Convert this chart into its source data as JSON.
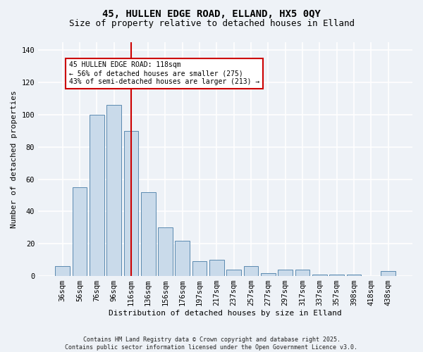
{
  "title1": "45, HULLEN EDGE ROAD, ELLAND, HX5 0QY",
  "title2": "Size of property relative to detached houses in Elland",
  "xlabel": "Distribution of detached houses by size in Elland",
  "ylabel": "Number of detached properties",
  "categories": [
    "36sqm",
    "56sqm",
    "76sqm",
    "96sqm",
    "116sqm",
    "136sqm",
    "156sqm",
    "176sqm",
    "197sqm",
    "217sqm",
    "237sqm",
    "257sqm",
    "277sqm",
    "297sqm",
    "317sqm",
    "337sqm",
    "357sqm",
    "398sqm",
    "418sqm",
    "438sqm"
  ],
  "values": [
    6,
    55,
    100,
    106,
    90,
    52,
    30,
    22,
    9,
    10,
    4,
    6,
    2,
    4,
    4,
    1,
    1,
    1,
    0,
    3
  ],
  "bar_color": "#c9daea",
  "bar_edge_color": "#5a8ab0",
  "vline_x": 4,
  "vline_color": "#cc0000",
  "annotation_text": "45 HULLEN EDGE ROAD: 118sqm\n← 56% of detached houses are smaller (275)\n43% of semi-detached houses are larger (213) →",
  "annotation_box_color": "#ffffff",
  "annotation_box_edge": "#cc0000",
  "ylim": [
    0,
    145
  ],
  "yticks": [
    0,
    20,
    40,
    60,
    80,
    100,
    120,
    140
  ],
  "bg_color": "#eef2f7",
  "grid_color": "#ffffff",
  "footer": "Contains HM Land Registry data © Crown copyright and database right 2025.\nContains public sector information licensed under the Open Government Licence v3.0.",
  "title1_fontsize": 10,
  "title2_fontsize": 9,
  "ylabel_fontsize": 8,
  "xlabel_fontsize": 8,
  "tick_fontsize": 7.5,
  "ann_fontsize": 7,
  "footer_fontsize": 6
}
